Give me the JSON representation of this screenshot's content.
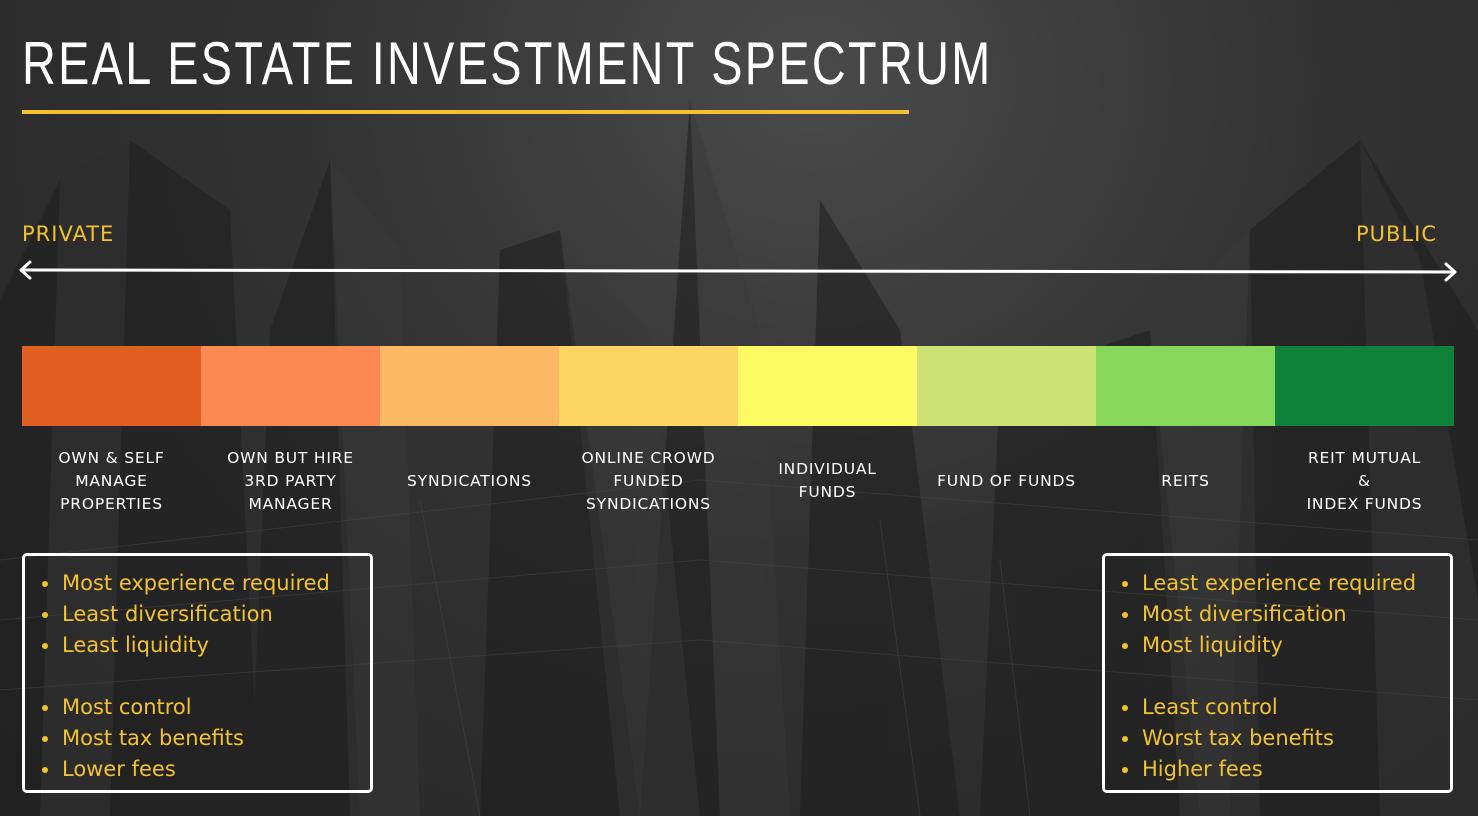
{
  "title": "REAL ESTATE INVESTMENT SPECTRUM",
  "colors": {
    "accent": "#f2c230",
    "background": "#2c2c2c",
    "text": "#ffffff"
  },
  "axis": {
    "left_label": "PRIVATE",
    "right_label": "PUBLIC",
    "arrow_icon": "double-headed-arrow"
  },
  "spectrum": {
    "segments": [
      {
        "label": "OWN & SELF\nMANAGE\nPROPERTIES",
        "color": "#e25f22"
      },
      {
        "label": "OWN BUT HIRE\n3RD PARTY\nMANAGER",
        "color": "#fb8a52"
      },
      {
        "label": "SYNDICATIONS",
        "color": "#fdb863"
      },
      {
        "label": "ONLINE CROWD\nFUNDED\nSYNDICATIONS",
        "color": "#fdd662"
      },
      {
        "label": "INDIVIDUAL\nFUNDS",
        "color": "#fefa63"
      },
      {
        "label": "FUND OF FUNDS",
        "color": "#cde274"
      },
      {
        "label": "REITS",
        "color": "#86d75c"
      },
      {
        "label": "REIT MUTUAL\n&\nINDEX FUNDS",
        "color": "#0f8239"
      }
    ]
  },
  "left_box": {
    "group1": [
      "Most experience required",
      "Least diversification",
      "Least liquidity"
    ],
    "group2": [
      "Most control",
      "Most tax benefits",
      "Lower fees"
    ]
  },
  "right_box": {
    "group1": [
      "Least experience required",
      "Most diversification",
      "Most liquidity"
    ],
    "group2": [
      "Least control",
      "Worst tax benefits",
      "Higher fees"
    ]
  }
}
